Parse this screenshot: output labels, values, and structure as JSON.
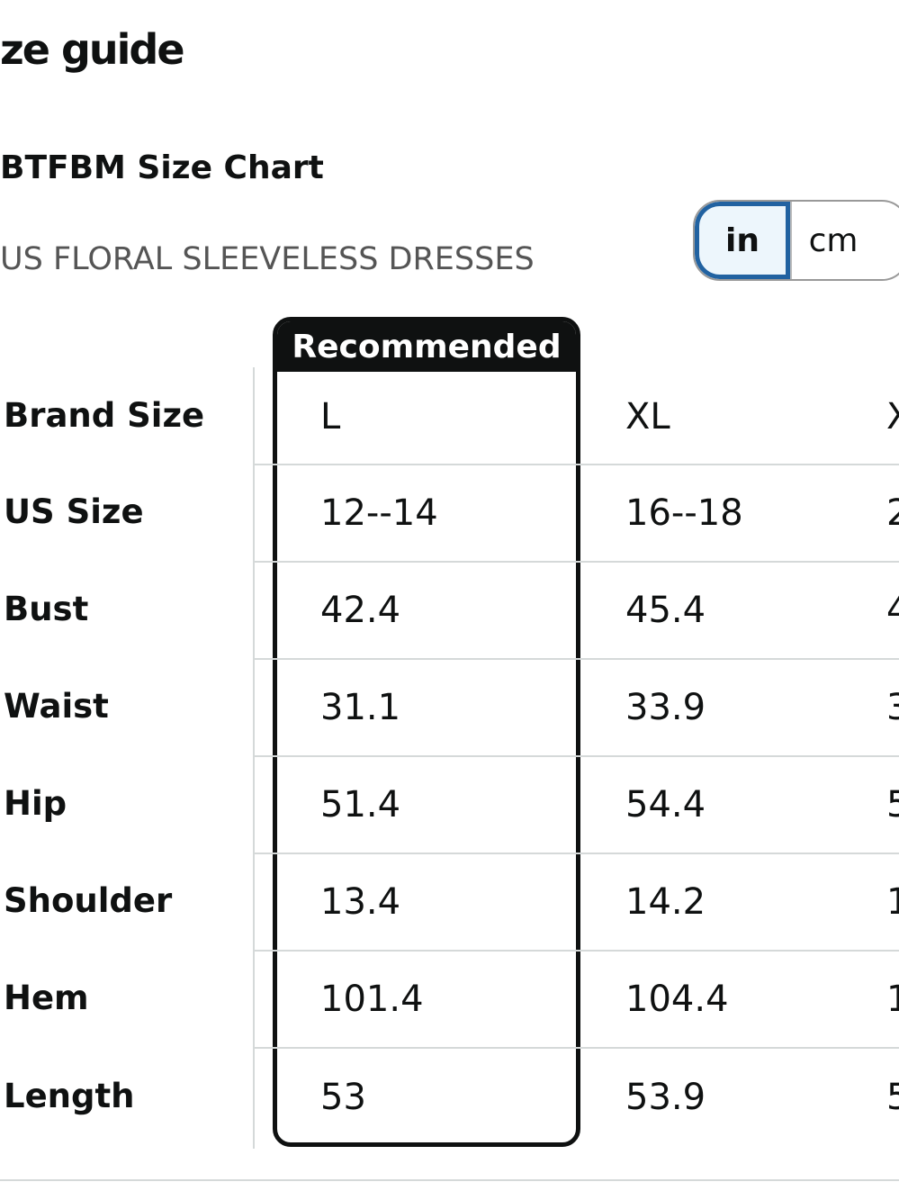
{
  "heading": {
    "title": "ze guide",
    "chart_name": "BTFBM Size Chart",
    "product_line": "US FLORAL SLEEVELESS DRESSES"
  },
  "unit_toggle": {
    "options": [
      "in",
      "cm"
    ],
    "selected": "in"
  },
  "table": {
    "recommended_badge": "Recommended",
    "rows": [
      {
        "label": "Brand Size",
        "values": [
          "L",
          "XL",
          "X"
        ]
      },
      {
        "label": "US Size",
        "values": [
          "12--14",
          "16--18",
          "2"
        ]
      },
      {
        "label": "Bust",
        "values": [
          "42.4",
          "45.4",
          "4"
        ]
      },
      {
        "label": "Waist",
        "values": [
          "31.1",
          "33.9",
          "3"
        ]
      },
      {
        "label": "Hip",
        "values": [
          "51.4",
          "54.4",
          "5"
        ]
      },
      {
        "label": "Shoulder",
        "values": [
          "13.4",
          "14.2",
          "1"
        ]
      },
      {
        "label": "Hem",
        "values": [
          "101.4",
          "104.4",
          "1"
        ]
      },
      {
        "label": "Length",
        "values": [
          "53",
          "53.9",
          "5"
        ]
      }
    ]
  },
  "colors": {
    "text": "#0f1111",
    "muted_text": "#555555",
    "selected_border": "#2162a1",
    "selected_fill": "#edf6fc",
    "divider": "#d5d9d9"
  }
}
